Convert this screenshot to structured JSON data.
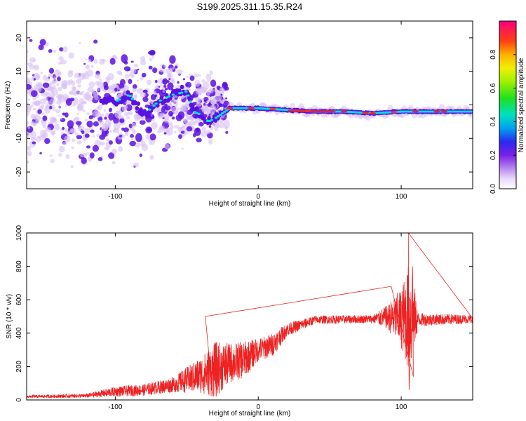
{
  "title": "S199.2025.311.15.35.R24",
  "chart_data": [
    {
      "type": "heatmap",
      "name": "spectrogram",
      "xlabel": "Height of straight line (km)",
      "ylabel": "Frequency (Hz)",
      "xlim": [
        -162,
        150
      ],
      "ylim": [
        -25,
        25
      ],
      "xticks": [
        -100,
        0,
        100
      ],
      "yticks": [
        -20,
        -10,
        0,
        10,
        20
      ],
      "xtick_labels": [
        "-100",
        "0",
        "100"
      ],
      "ytick_labels": [
        "-20",
        "-10",
        "0",
        "10",
        "20"
      ],
      "colorbar": {
        "label": "Normalized spectral amplitude",
        "range": [
          0,
          1
        ],
        "ticks": [
          0.0,
          0.2,
          0.4,
          0.6,
          0.8
        ],
        "tick_labels": [
          "0.0",
          "0.2",
          "0.4",
          "0.6",
          "0.8"
        ]
      },
      "ridge": [
        {
          "x": -110,
          "f": 2
        },
        {
          "x": -100,
          "f": 1
        },
        {
          "x": -90,
          "f": 3
        },
        {
          "x": -80,
          "f": -3
        },
        {
          "x": -70,
          "f": 1
        },
        {
          "x": -60,
          "f": 3
        },
        {
          "x": -50,
          "f": 4
        },
        {
          "x": -45,
          "f": -2
        },
        {
          "x": -40,
          "f": -3
        },
        {
          "x": -35,
          "f": -5
        },
        {
          "x": -30,
          "f": -4
        },
        {
          "x": -20,
          "f": -1
        },
        {
          "x": -10,
          "f": -1
        },
        {
          "x": 0,
          "f": -1
        },
        {
          "x": 20,
          "f": -1.5
        },
        {
          "x": 40,
          "f": -2
        },
        {
          "x": 60,
          "f": -2
        },
        {
          "x": 80,
          "f": -2.5
        },
        {
          "x": 100,
          "f": -2
        },
        {
          "x": 120,
          "f": -2
        },
        {
          "x": 150,
          "f": -2
        }
      ],
      "colors": {
        "low": "#d9bff5",
        "mid": "#5a10e0",
        "high": "#00e0e0",
        "peak": "#ff2020"
      }
    },
    {
      "type": "line",
      "name": "snr",
      "xlabel": "Height of straight line (km)",
      "ylabel": "SNR (10 * v/v)",
      "xlim": [
        -162,
        150
      ],
      "ylim": [
        0,
        1000
      ],
      "xticks": [
        -100,
        0,
        100
      ],
      "yticks": [
        0,
        200,
        400,
        600,
        800,
        1000
      ],
      "xtick_labels": [
        "-100",
        "0",
        "100"
      ],
      "ytick_labels": [
        "0",
        "200",
        "400",
        "600",
        "800",
        "1000"
      ],
      "color": "#ee2222",
      "envelope": [
        {
          "x": -162,
          "mean": 20,
          "amp": 8
        },
        {
          "x": -120,
          "mean": 25,
          "amp": 12
        },
        {
          "x": -100,
          "mean": 50,
          "amp": 30
        },
        {
          "x": -80,
          "mean": 60,
          "amp": 35
        },
        {
          "x": -60,
          "mean": 90,
          "amp": 45
        },
        {
          "x": -40,
          "mean": 150,
          "amp": 110
        },
        {
          "x": -30,
          "mean": 180,
          "amp": 170
        },
        {
          "x": -20,
          "mean": 220,
          "amp": 120
        },
        {
          "x": -10,
          "mean": 240,
          "amp": 110
        },
        {
          "x": 0,
          "mean": 300,
          "amp": 70
        },
        {
          "x": 10,
          "mean": 330,
          "amp": 70
        },
        {
          "x": 20,
          "mean": 420,
          "amp": 40
        },
        {
          "x": 40,
          "mean": 480,
          "amp": 25
        },
        {
          "x": 80,
          "mean": 485,
          "amp": 25
        },
        {
          "x": 90,
          "mean": 495,
          "amp": 70
        },
        {
          "x": 100,
          "mean": 490,
          "amp": 180
        },
        {
          "x": 106,
          "mean": 490,
          "amp": 350
        },
        {
          "x": 112,
          "mean": 480,
          "amp": 40
        },
        {
          "x": 150,
          "mean": 485,
          "amp": 25
        }
      ],
      "peaks": [
        {
          "x": 105,
          "y": 1000
        },
        {
          "x": 105.5,
          "y": 60
        },
        {
          "x": 108,
          "y": 800
        },
        {
          "x": 108.5,
          "y": 140
        },
        {
          "x": 93,
          "y": 680
        },
        {
          "x": -37,
          "y": 500
        },
        {
          "x": -32,
          "y": 40
        }
      ]
    }
  ]
}
